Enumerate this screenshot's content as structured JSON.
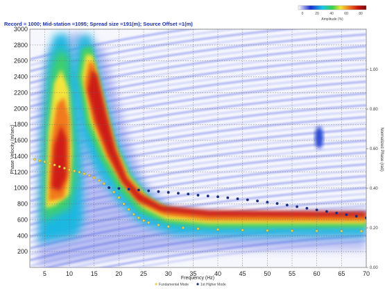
{
  "chart_data": {
    "type": "heatmap",
    "header": "Record = 1000; Mid-station =1095; Spread size =191(m); Source Offset =1(m)",
    "xlabel": "Frequency (Hz)",
    "ylabel": "Phase Velocity (m/sec)",
    "right_axis_label": "Normalized Phase (rad)",
    "xlim": [
      2,
      70
    ],
    "ylim": [
      0,
      3000
    ],
    "x_ticks": [
      5,
      10,
      15,
      20,
      25,
      30,
      35,
      40,
      45,
      50,
      55,
      60,
      65,
      70
    ],
    "y_ticks": [
      200,
      400,
      600,
      800,
      1000,
      1200,
      1400,
      1600,
      1800,
      2000,
      2200,
      2400,
      2600,
      2800,
      3000
    ],
    "right_ticks": [
      "1.00",
      "0.80",
      "0.60",
      "0.40",
      "0.20",
      "0.00"
    ],
    "grid": true,
    "colorbar": {
      "title": "Amplitude (%)",
      "ticks": [
        "0",
        "20",
        "40",
        "60",
        "80"
      ],
      "colors": [
        "#ffffff",
        "#1a2bd0",
        "#19c8e8",
        "#35d04a",
        "#f0e838",
        "#f07820",
        "#c81410",
        "#7a0a0a"
      ]
    },
    "legend": {
      "placement": "bottom",
      "entries": [
        {
          "name": "Fundamental Mode",
          "color": "#e8d44a"
        },
        {
          "name": "1st Higher Mode",
          "color": "#1a2c80"
        }
      ]
    },
    "series": [
      {
        "name": "Fundamental Mode",
        "color": "#e8d44a",
        "x": [
          3,
          4,
          5,
          6,
          7,
          8,
          9,
          10,
          11,
          12,
          13,
          14,
          15,
          16,
          17,
          18,
          19,
          20,
          21,
          22,
          23,
          24,
          25,
          26,
          28,
          30,
          33,
          36,
          40,
          45,
          50,
          55,
          60,
          65,
          69
        ],
        "y": [
          1360,
          1345,
          1330,
          1310,
          1290,
          1270,
          1250,
          1230,
          1215,
          1200,
          1180,
          1160,
          1130,
          1095,
          1055,
          1005,
          950,
          880,
          800,
          730,
          670,
          625,
          590,
          565,
          535,
          515,
          500,
          488,
          478,
          470,
          465,
          462,
          460,
          458,
          457
        ]
      },
      {
        "name": "1st Higher Mode",
        "color": "#1a2c80",
        "x": [
          18,
          20,
          22,
          24,
          26,
          28,
          30,
          32,
          34,
          36,
          38,
          40,
          42,
          44,
          46,
          48,
          50,
          52,
          54,
          56,
          58,
          60,
          62,
          64,
          66,
          68,
          70
        ],
        "y": [
          1005,
          995,
          985,
          975,
          965,
          955,
          945,
          935,
          925,
          910,
          900,
          890,
          878,
          865,
          852,
          838,
          822,
          805,
          786,
          765,
          745,
          725,
          705,
          685,
          665,
          645,
          625
        ]
      }
    ]
  }
}
